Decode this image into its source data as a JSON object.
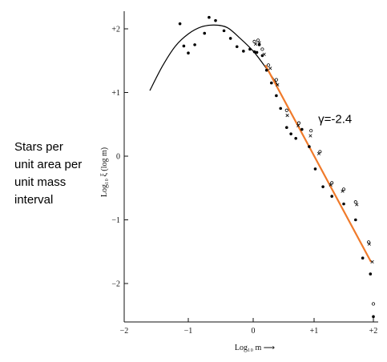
{
  "side_label": "Stars per\nunit area per\nunit mass\ninterval",
  "chart_data": {
    "type": "scatter",
    "title": "",
    "xlabel": "Log₁₀ m ⟶",
    "ylabel": "Log₁₀ ξ (log m)",
    "xlim": [
      -2,
      2
    ],
    "ylim": [
      -2.6,
      2.25
    ],
    "x_ticks": [
      -2,
      -1,
      0,
      1,
      2
    ],
    "x_tick_labels": [
      "−2",
      "−1",
      "0",
      "+1",
      "+2"
    ],
    "y_ticks": [
      2,
      1,
      0,
      -1,
      -2
    ],
    "y_tick_labels": [
      "+2",
      "+1",
      "0",
      "−1",
      "−2"
    ],
    "grid": false,
    "series": [
      {
        "kind": "points",
        "marker": "dot",
        "x": [
          -1.13,
          -1.07,
          -1.0,
          -0.9,
          -0.75,
          -0.68,
          -0.58,
          -0.45,
          -0.35,
          -0.25,
          -0.15,
          -0.05,
          0.02,
          0.06,
          0.1,
          0.15,
          0.22,
          0.3,
          0.38,
          0.45,
          0.55,
          0.62,
          0.7,
          0.8,
          0.92,
          1.02,
          1.15,
          1.3,
          1.5,
          1.7,
          1.82,
          1.95,
          2.0
        ],
        "y": [
          2.08,
          1.73,
          1.62,
          1.75,
          1.93,
          2.18,
          2.13,
          1.97,
          1.85,
          1.72,
          1.65,
          1.68,
          1.64,
          1.63,
          1.75,
          1.58,
          1.35,
          1.15,
          0.95,
          0.75,
          0.45,
          0.35,
          0.28,
          0.42,
          0.15,
          -0.2,
          -0.48,
          -0.63,
          -0.75,
          -1.0,
          -1.6,
          -1.85,
          -2.52
        ]
      },
      {
        "kind": "points",
        "marker": "open-circle",
        "x": [
          0.02,
          0.08,
          0.15,
          0.25,
          0.38,
          0.55,
          0.75,
          0.95,
          1.1,
          1.3,
          1.5,
          1.7,
          1.92,
          2.0
        ],
        "y": [
          1.8,
          1.82,
          1.68,
          1.43,
          1.2,
          0.72,
          0.52,
          0.4,
          0.07,
          -0.42,
          -0.52,
          -0.72,
          -1.35,
          -2.32
        ]
      },
      {
        "kind": "points",
        "marker": "cross",
        "x": [
          0.04,
          0.1,
          0.18,
          0.28,
          0.4,
          0.56,
          0.74,
          0.94,
          1.08,
          1.28,
          1.48,
          1.72,
          1.93,
          1.98
        ],
        "y": [
          1.76,
          1.78,
          1.6,
          1.38,
          1.12,
          0.64,
          0.48,
          0.32,
          0.04,
          -0.45,
          -0.55,
          -0.76,
          -1.38,
          -1.66
        ]
      },
      {
        "kind": "line",
        "color": "#000000",
        "x": [
          -1.6,
          -1.4,
          -1.2,
          -1.0,
          -0.8,
          -0.6,
          -0.4,
          -0.2,
          0.0,
          0.2,
          0.4
        ],
        "y": [
          1.03,
          1.42,
          1.73,
          1.92,
          2.03,
          2.06,
          2.02,
          1.85,
          1.65,
          1.4,
          1.12
        ]
      },
      {
        "kind": "line",
        "color": "#f07a2a",
        "x": [
          0.2,
          1.96
        ],
        "y": [
          1.43,
          -1.66
        ]
      }
    ],
    "annotations": [
      {
        "text": "γ=-2.4",
        "x": 1.07,
        "y": 0.52
      }
    ]
  }
}
